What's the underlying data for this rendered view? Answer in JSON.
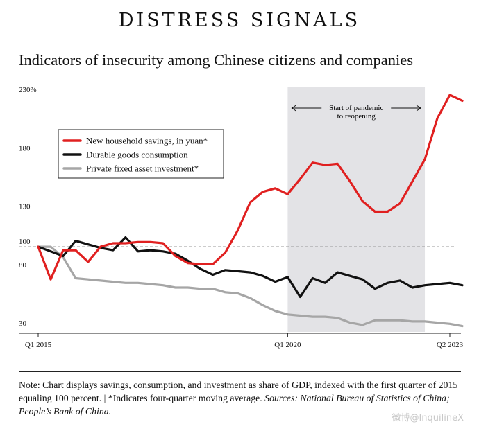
{
  "header": {
    "title": "DISTRESS SIGNALS",
    "subtitle": "Indicators of insecurity among Chinese citizens and companies"
  },
  "chart_data": {
    "type": "line",
    "x_labels": [
      "Q1 2015",
      "Q1 2020",
      "Q2 2023"
    ],
    "x_start": "Q1 2015",
    "x_end": "Q2 2023",
    "y_ticks": [
      {
        "value": 230,
        "label": "230%"
      },
      {
        "value": 180,
        "label": "180"
      },
      {
        "value": 130,
        "label": "130"
      },
      {
        "value": 100,
        "label": "100"
      },
      {
        "value": 80,
        "label": "80"
      },
      {
        "value": 30,
        "label": "30"
      }
    ],
    "ylim": [
      30,
      230
    ],
    "reference_line": 100,
    "shaded_region": {
      "start": "Q1 2020",
      "end": "Q4 2022",
      "label_line1": "Start of pandemic",
      "label_line2": "to reopening"
    },
    "legend_position": "top-left",
    "series": [
      {
        "name": "New household savings, in yuan*",
        "color": "#e02020",
        "values": [
          100,
          72,
          97,
          97,
          87,
          100,
          103,
          103,
          104,
          104,
          103,
          92,
          86,
          85,
          85,
          95,
          114,
          138,
          147,
          150,
          145,
          158,
          172,
          170,
          171,
          156,
          139,
          130,
          130,
          137,
          156,
          175,
          210,
          230,
          225
        ]
      },
      {
        "name": "Durable goods consumption",
        "color": "#111111",
        "values": [
          100,
          96,
          92,
          105,
          102,
          99,
          97,
          108,
          96,
          97,
          96,
          94,
          88,
          81,
          76,
          80,
          79,
          78,
          75,
          70,
          74,
          57,
          73,
          69,
          78,
          75,
          72,
          64,
          69,
          71,
          65,
          67,
          68,
          69,
          67
        ]
      },
      {
        "name": "Private fixed asset investment*",
        "color": "#a6a6a6",
        "values": [
          100,
          100,
          91,
          73,
          72,
          71,
          70,
          69,
          69,
          68,
          67,
          65,
          65,
          64,
          64,
          61,
          60,
          56,
          50,
          45,
          42,
          41,
          40,
          40,
          39,
          35,
          33,
          37,
          37,
          37,
          36,
          36,
          35,
          34,
          32
        ]
      }
    ]
  },
  "note": {
    "text": "Note: Chart displays savings, consumption, and investment as share of GDP, indexed with the first quarter of 2015 equaling 100 percent. | *Indicates four-quarter moving average. ",
    "sources": "Sources: National Bureau of Statistics of China; People’s Bank of China."
  },
  "watermark": "微博@InquilineX"
}
